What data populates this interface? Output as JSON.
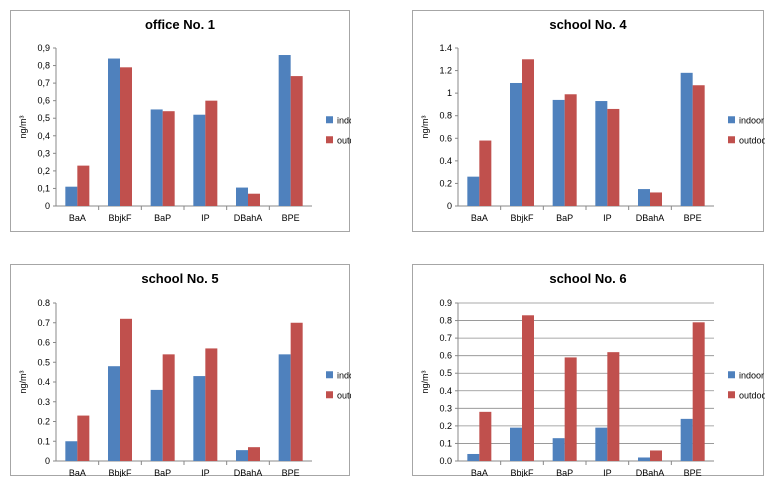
{
  "colors": {
    "indoor": "#4F81BD",
    "outdoor": "#C0504D",
    "grid": "#8c8c8c"
  },
  "chart_data": [
    {
      "type": "bar",
      "title": "office No. 1",
      "ylabel": "ng/m³",
      "categories": [
        "BaA",
        "BbjkF",
        "BaP",
        "IP",
        "DBahA",
        "BPE"
      ],
      "series": [
        {
          "name": "indoor",
          "values": [
            0.11,
            0.84,
            0.55,
            0.52,
            0.105,
            0.86
          ]
        },
        {
          "name": "outdoor",
          "values": [
            0.23,
            0.79,
            0.54,
            0.6,
            0.07,
            0.74
          ]
        }
      ],
      "yticks": [
        "0",
        "0,1",
        "0,2",
        "0,3",
        "0,4",
        "0,5",
        "0,6",
        "0,7",
        "0,8",
        "0,9"
      ],
      "ylim": [
        0,
        0.9
      ],
      "grid": false,
      "legend": "right"
    },
    {
      "type": "bar",
      "title": "school No. 4",
      "ylabel": "ng/m³",
      "categories": [
        "BaA",
        "BbjkF",
        "BaP",
        "IP",
        "DBahA",
        "BPE"
      ],
      "series": [
        {
          "name": "indoor",
          "values": [
            0.26,
            1.09,
            0.94,
            0.93,
            0.15,
            1.18
          ]
        },
        {
          "name": "outdoor",
          "values": [
            0.58,
            1.3,
            0.99,
            0.86,
            0.12,
            1.07
          ]
        }
      ],
      "yticks": [
        "0",
        "0.2",
        "0.4",
        "0.6",
        "0.8",
        "1",
        "1.2",
        "1.4"
      ],
      "ylim": [
        0,
        1.4
      ],
      "grid": false,
      "legend": "right"
    },
    {
      "type": "bar",
      "title": "school No. 5",
      "ylabel": "ng/m³",
      "categories": [
        "BaA",
        "BbjkF",
        "BaP",
        "IP",
        "DBahA",
        "BPE"
      ],
      "series": [
        {
          "name": "indoor",
          "values": [
            0.1,
            0.48,
            0.36,
            0.43,
            0.055,
            0.54
          ]
        },
        {
          "name": "outdoor",
          "values": [
            0.23,
            0.72,
            0.54,
            0.57,
            0.07,
            0.7
          ]
        }
      ],
      "yticks": [
        "0",
        "0.1",
        "0.2",
        "0.3",
        "0.4",
        "0.5",
        "0.6",
        "0.7",
        "0.8"
      ],
      "ylim": [
        0,
        0.8
      ],
      "grid": false,
      "legend": "right"
    },
    {
      "type": "bar",
      "title": "school No. 6",
      "ylabel": "ng/m³",
      "categories": [
        "BaA",
        "BbjkF",
        "BaP",
        "IP",
        "DBahA",
        "BPE"
      ],
      "series": [
        {
          "name": "indoor",
          "values": [
            0.04,
            0.19,
            0.13,
            0.19,
            0.02,
            0.24
          ]
        },
        {
          "name": "outdoor",
          "values": [
            0.28,
            0.83,
            0.59,
            0.62,
            0.06,
            0.79
          ]
        }
      ],
      "yticks": [
        "0.0",
        "0.1",
        "0.2",
        "0.3",
        "0.4",
        "0.5",
        "0.6",
        "0.7",
        "0.8",
        "0.9"
      ],
      "ylim": [
        0,
        0.9
      ],
      "grid": true,
      "legend": "right"
    }
  ]
}
